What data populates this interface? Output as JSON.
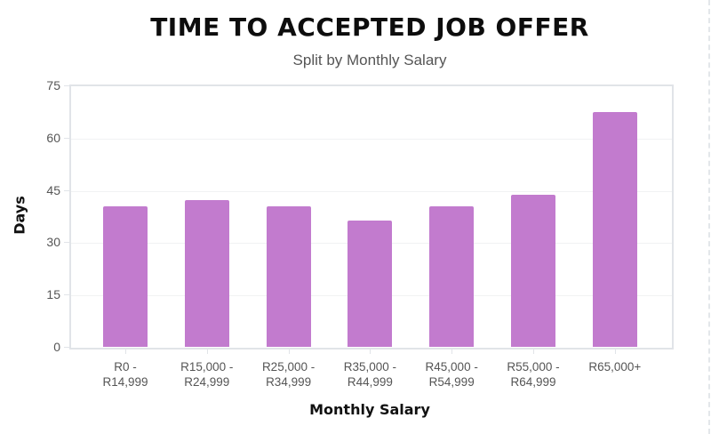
{
  "chart_data": {
    "type": "bar",
    "title": "TIME TO ACCEPTED JOB OFFER",
    "subtitle": "Split by Monthly Salary",
    "xlabel": "Monthly Salary",
    "ylabel": "Days",
    "ylim": [
      0,
      75
    ],
    "yticks": [
      0,
      15,
      30,
      45,
      60,
      75
    ],
    "grid": true,
    "legend": null,
    "categories": [
      "R0 - R14,999",
      "R15,000 - R24,999",
      "R25,000 - R34,999",
      "R35,000 - R44,999",
      "R45,000 - R54,999",
      "R55,000 - R64,999",
      "R65,000+"
    ],
    "category_label_lines": [
      "R0 -\nR14,999",
      "R15,000 -\nR24,999",
      "R25,000 -\nR34,999",
      "R35,000 -\nR44,999",
      "R45,000 -\nR54,999",
      "R55,000 -\nR64,999",
      "R65,000+"
    ],
    "values": [
      40.3,
      42.0,
      40.3,
      36.3,
      40.3,
      43.5,
      67.3
    ],
    "bar_color": "#c27bce"
  },
  "labels": {
    "title": "TIME TO ACCEPTED JOB OFFER",
    "subtitle": "Split by Monthly Salary",
    "xlabel": "Monthly Salary",
    "ylabel": "Days",
    "ytick": [
      "0",
      "15",
      "30",
      "45",
      "60",
      "75"
    ]
  }
}
